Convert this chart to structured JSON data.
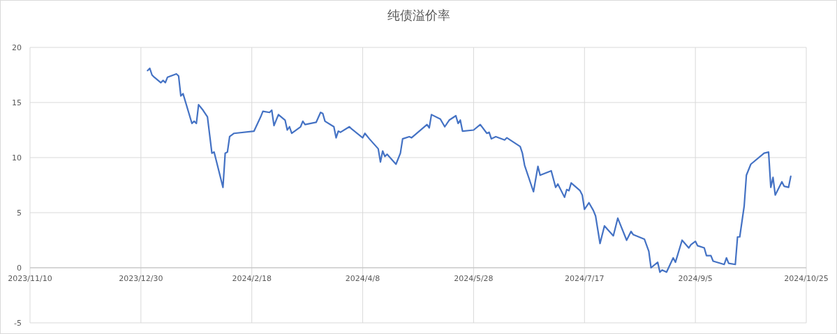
{
  "chart_data": {
    "type": "line",
    "title": "纯债溢价率",
    "grid": true,
    "marker": "none",
    "line_style": "solid",
    "xlim": [
      "2023-11-10",
      "2024-10-25"
    ],
    "xticks": [
      {
        "value": "2023-11-10",
        "label": "2023/11/10"
      },
      {
        "value": "2023-12-30",
        "label": "2023/12/30"
      },
      {
        "value": "2024-02-18",
        "label": "2024/2/18"
      },
      {
        "value": "2024-04-08",
        "label": "2024/4/8"
      },
      {
        "value": "2024-05-28",
        "label": "2024/5/28"
      },
      {
        "value": "2024-07-17",
        "label": "2024/7/17"
      },
      {
        "value": "2024-09-05",
        "label": "2024/9/5"
      },
      {
        "value": "2024-10-25",
        "label": "2024/10/25"
      }
    ],
    "ylim": [
      -5,
      20
    ],
    "yticks": [
      -5,
      0,
      5,
      10,
      15,
      20
    ],
    "x": [
      "2024-01-02",
      "2024-01-03",
      "2024-01-04",
      "2024-01-05",
      "2024-01-08",
      "2024-01-09",
      "2024-01-10",
      "2024-01-11",
      "2024-01-15",
      "2024-01-16",
      "2024-01-17",
      "2024-01-18",
      "2024-01-22",
      "2024-01-23",
      "2024-01-24",
      "2024-01-25",
      "2024-01-27",
      "2024-01-29",
      "2024-01-31",
      "2024-02-01",
      "2024-02-05",
      "2024-02-06",
      "2024-02-07",
      "2024-02-08",
      "2024-02-10",
      "2024-02-19",
      "2024-02-22",
      "2024-02-23",
      "2024-02-26",
      "2024-02-27",
      "2024-02-28",
      "2024-03-01",
      "2024-03-04",
      "2024-03-05",
      "2024-03-06",
      "2024-03-07",
      "2024-03-11",
      "2024-03-12",
      "2024-03-13",
      "2024-03-18",
      "2024-03-20",
      "2024-03-21",
      "2024-03-22",
      "2024-03-26",
      "2024-03-27",
      "2024-03-28",
      "2024-03-29",
      "2024-04-02",
      "2024-04-03",
      "2024-04-08",
      "2024-04-09",
      "2024-04-11",
      "2024-04-15",
      "2024-04-16",
      "2024-04-17",
      "2024-04-18",
      "2024-04-19",
      "2024-04-23",
      "2024-04-25",
      "2024-04-26",
      "2024-04-29",
      "2024-04-30",
      "2024-05-07",
      "2024-05-08",
      "2024-05-09",
      "2024-05-13",
      "2024-05-15",
      "2024-05-17",
      "2024-05-20",
      "2024-05-21",
      "2024-05-22",
      "2024-05-23",
      "2024-05-28",
      "2024-05-31",
      "2024-06-03",
      "2024-06-04",
      "2024-06-05",
      "2024-06-07",
      "2024-06-11",
      "2024-06-12",
      "2024-06-18",
      "2024-06-19",
      "2024-06-20",
      "2024-06-24",
      "2024-06-26",
      "2024-06-27",
      "2024-07-02",
      "2024-07-04",
      "2024-07-05",
      "2024-07-08",
      "2024-07-09",
      "2024-07-10",
      "2024-07-11",
      "2024-07-15",
      "2024-07-16",
      "2024-07-17",
      "2024-07-19",
      "2024-07-21",
      "2024-07-22",
      "2024-07-24",
      "2024-07-26",
      "2024-07-30",
      "2024-08-01",
      "2024-08-05",
      "2024-08-07",
      "2024-08-08",
      "2024-08-13",
      "2024-08-15",
      "2024-08-16",
      "2024-08-19",
      "2024-08-20",
      "2024-08-21",
      "2024-08-23",
      "2024-08-26",
      "2024-08-27",
      "2024-08-30",
      "2024-09-02",
      "2024-09-03",
      "2024-09-05",
      "2024-09-06",
      "2024-09-09",
      "2024-09-10",
      "2024-09-12",
      "2024-09-13",
      "2024-09-18",
      "2024-09-19",
      "2024-09-20",
      "2024-09-23",
      "2024-09-24",
      "2024-09-25",
      "2024-09-27",
      "2024-09-28",
      "2024-09-30",
      "2024-10-06",
      "2024-10-08",
      "2024-10-09",
      "2024-10-10",
      "2024-10-11",
      "2024-10-14",
      "2024-10-15",
      "2024-10-17",
      "2024-10-18"
    ],
    "series": [
      {
        "color": "#4472c4",
        "values": [
          17.9,
          18.1,
          17.5,
          17.3,
          16.8,
          17.0,
          16.8,
          17.3,
          17.6,
          17.4,
          15.6,
          15.8,
          13.1,
          13.3,
          13.1,
          14.8,
          14.3,
          13.7,
          10.4,
          10.5,
          7.3,
          10.4,
          10.5,
          11.9,
          12.2,
          12.4,
          13.7,
          14.2,
          14.1,
          14.3,
          12.9,
          13.9,
          13.4,
          12.5,
          12.8,
          12.2,
          12.8,
          13.3,
          13.0,
          13.2,
          14.1,
          14.0,
          13.3,
          12.8,
          11.8,
          12.4,
          12.3,
          12.8,
          12.6,
          11.8,
          12.2,
          11.7,
          10.8,
          9.6,
          10.6,
          10.1,
          10.3,
          9.4,
          10.4,
          11.7,
          11.9,
          11.8,
          13.0,
          12.7,
          13.9,
          13.5,
          12.8,
          13.4,
          13.8,
          13.1,
          13.4,
          12.4,
          12.5,
          13.0,
          12.2,
          12.3,
          11.7,
          11.9,
          11.6,
          11.8,
          11.0,
          10.4,
          9.3,
          6.9,
          9.2,
          8.4,
          8.8,
          7.3,
          7.6,
          6.4,
          7.1,
          7.0,
          7.7,
          7.0,
          6.6,
          5.3,
          5.9,
          5.2,
          4.7,
          2.2,
          3.8,
          2.9,
          4.5,
          2.5,
          3.3,
          3.0,
          2.6,
          1.5,
          0.0,
          0.5,
          -0.4,
          -0.2,
          -0.4,
          0.9,
          0.5,
          2.5,
          1.8,
          2.1,
          2.4,
          2.0,
          1.8,
          1.1,
          1.1,
          0.6,
          0.3,
          0.9,
          0.4,
          0.3,
          2.8,
          2.8,
          5.6,
          8.4,
          9.4,
          10.4,
          10.5,
          7.3,
          8.2,
          6.6,
          7.8,
          7.4,
          7.3,
          8.3
        ]
      }
    ]
  }
}
